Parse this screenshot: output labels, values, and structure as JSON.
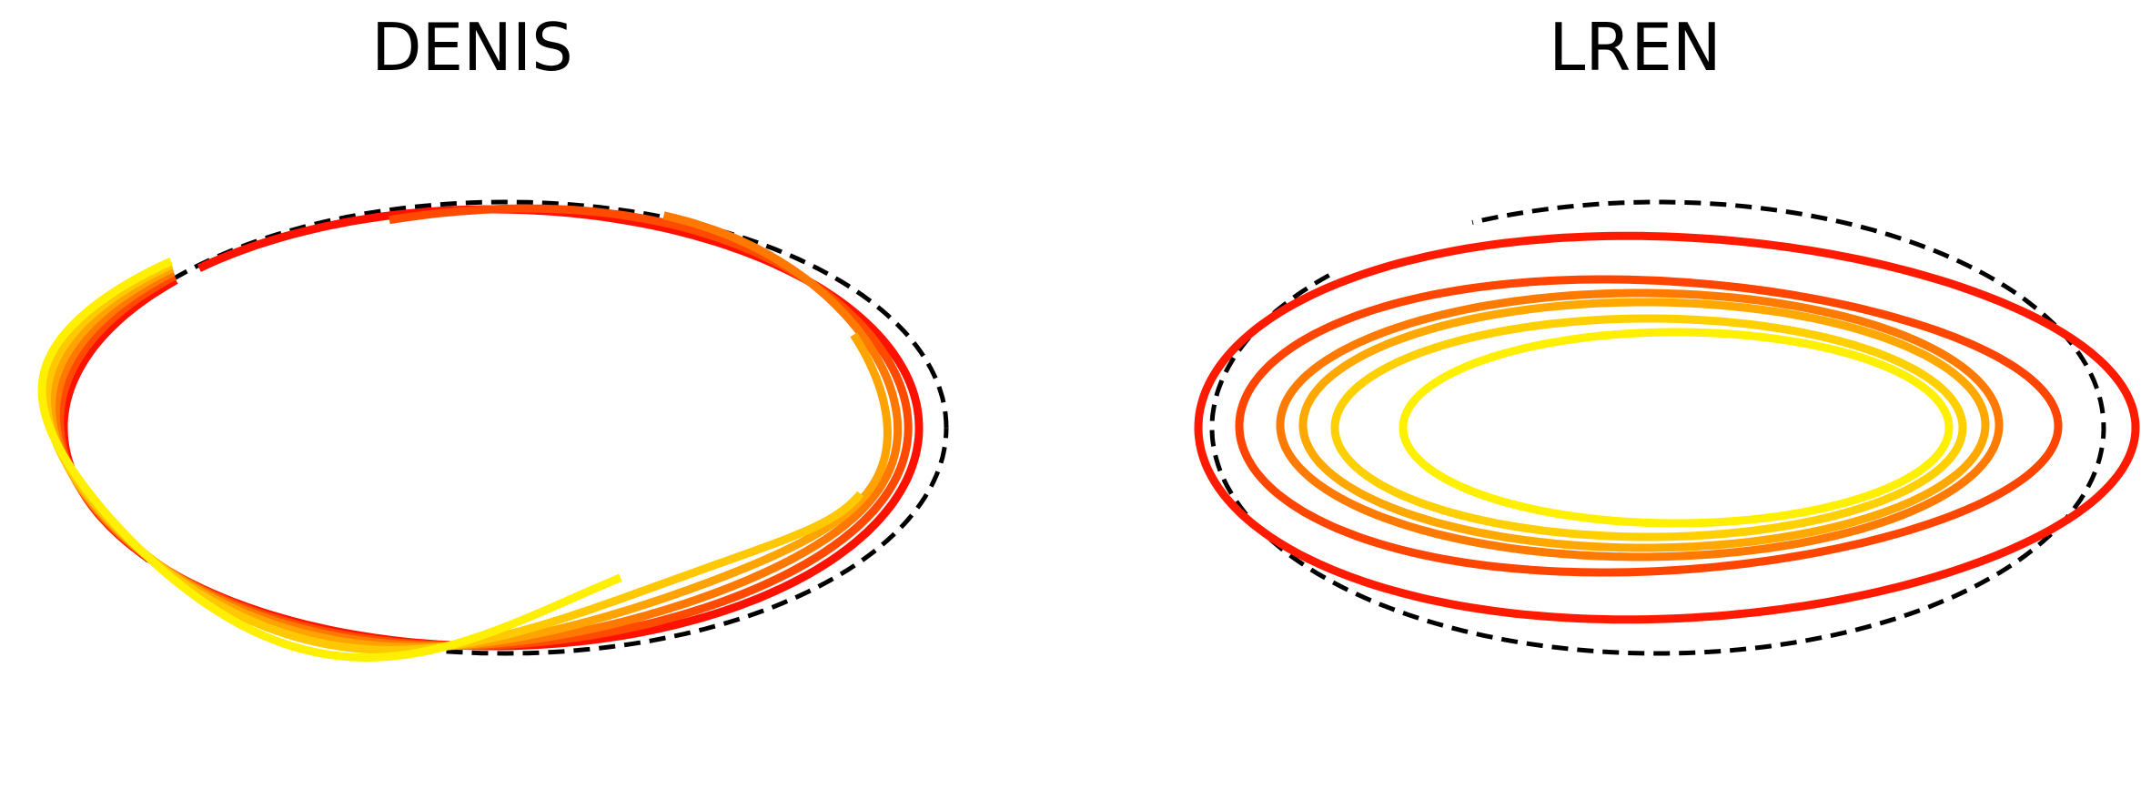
{
  "chart_data": [
    {
      "type": "line",
      "title": "DENIS",
      "axes": "off",
      "grid": false,
      "legend": "none",
      "target": {
        "style": "dashed",
        "color": "#000000"
      },
      "series": [
        {
          "color": "#ff1100",
          "loops": 0.94
        },
        {
          "color": "#ff4a00",
          "loops": 0.86
        },
        {
          "color": "#ff7800",
          "loops": 0.76
        },
        {
          "color": "#ffa300",
          "loops": 0.66
        },
        {
          "color": "#ffc800",
          "loops": 0.56
        },
        {
          "color": "#ffef00",
          "loops": 0.42
        }
      ]
    },
    {
      "type": "line",
      "title": "LREN",
      "axes": "off",
      "grid": false,
      "legend": "none",
      "target": {
        "style": "dashed",
        "color": "#000000"
      },
      "series": [
        {
          "color": "#ff1a00",
          "loops": 1.0
        },
        {
          "color": "#ff4500",
          "loops": 1.0
        },
        {
          "color": "#ff7a00",
          "loops": 1.0
        },
        {
          "color": "#ffa800",
          "loops": 1.0
        },
        {
          "color": "#ffd000",
          "loops": 1.0
        },
        {
          "color": "#fff000",
          "loops": 1.0
        }
      ]
    }
  ]
}
